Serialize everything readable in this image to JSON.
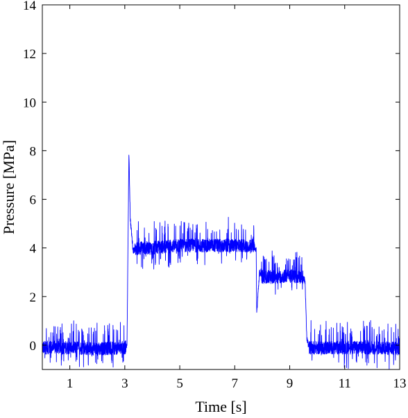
{
  "chart_data": {
    "type": "line",
    "title": "",
    "xlabel": "Time [s]",
    "ylabel": "Pressure [MPa]",
    "xlim": [
      0,
      13
    ],
    "ylim": [
      -1,
      14
    ],
    "xticks": [
      1,
      3,
      5,
      7,
      9,
      11,
      13
    ],
    "yticks": [
      0,
      2,
      4,
      6,
      8,
      10,
      12,
      14
    ],
    "grid": false,
    "legend": "none",
    "series": [
      {
        "color": "#0000ff",
        "x": [
          0.0,
          1.0,
          2.0,
          3.0,
          3.08,
          3.12,
          3.15,
          3.2,
          3.3,
          3.5,
          4.0,
          5.0,
          6.0,
          7.0,
          7.7,
          7.78,
          7.8,
          7.84,
          7.9,
          8.0,
          8.3,
          9.0,
          9.5,
          9.56,
          9.62,
          9.7,
          10.0,
          11.0,
          12.0,
          13.0
        ],
        "y": [
          -0.1,
          -0.1,
          -0.15,
          -0.1,
          -0.05,
          4.5,
          7.95,
          5.2,
          3.9,
          4.0,
          4.0,
          4.1,
          4.1,
          4.1,
          4.1,
          3.9,
          1.3,
          2.0,
          3.0,
          2.8,
          2.8,
          2.85,
          2.8,
          2.6,
          0.3,
          -0.1,
          -0.1,
          -0.1,
          -0.1,
          -0.15
        ]
      }
    ]
  }
}
